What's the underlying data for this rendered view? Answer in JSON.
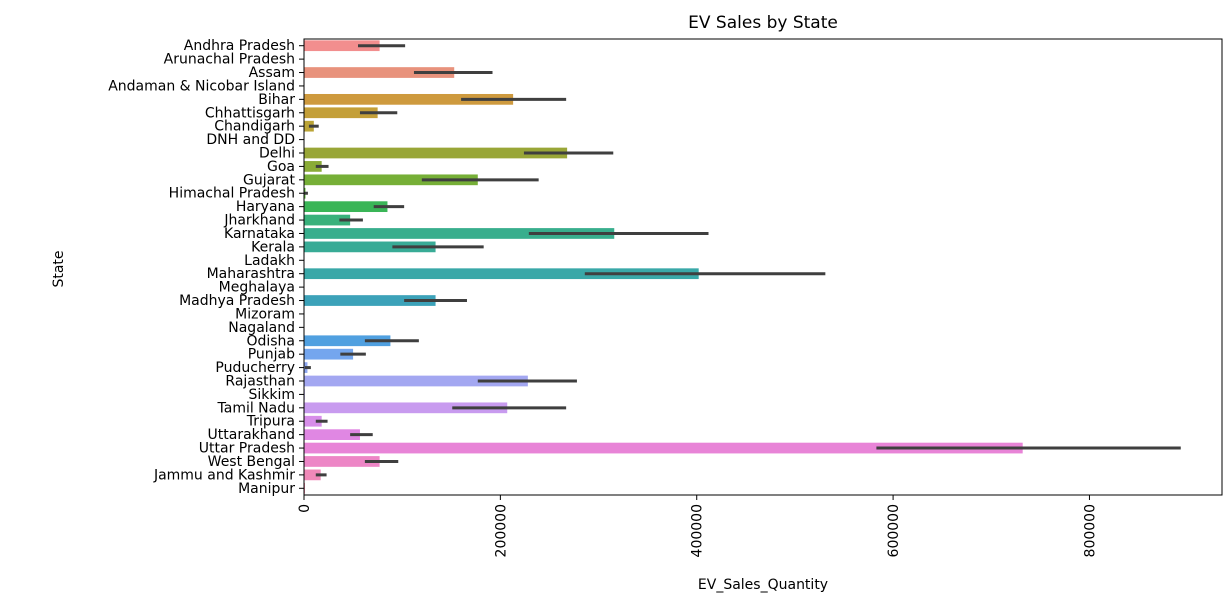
{
  "chart_data": {
    "type": "bar",
    "orientation": "horizontal",
    "title": "EV Sales by State",
    "xlabel": "EV_Sales_Quantity",
    "ylabel": "State",
    "xlim": [
      0,
      935000
    ],
    "xticks": [
      0,
      200000,
      400000,
      600000,
      800000
    ],
    "xtick_labels": [
      "0",
      "200000",
      "400000",
      "600000",
      "800000"
    ],
    "grid": false,
    "legend": "none",
    "categories": [
      "Andhra Pradesh",
      "Arunachal Pradesh",
      "Assam",
      "Andaman & Nicobar Island",
      "Bihar",
      "Chhattisgarh",
      "Chandigarh",
      "DNH and DD",
      "Delhi",
      "Goa",
      "Gujarat",
      "Himachal Pradesh",
      "Haryana",
      "Jharkhand",
      "Karnataka",
      "Kerala",
      "Ladakh",
      "Maharashtra",
      "Meghalaya",
      "Madhya Pradesh",
      "Mizoram",
      "Nagaland",
      "Odisha",
      "Punjab",
      "Puducherry",
      "Rajasthan",
      "Sikkim",
      "Tamil Nadu",
      "Tripura",
      "Uttarakhand",
      "Uttar Pradesh",
      "West Bengal",
      "Jammu and Kashmir",
      "Manipur"
    ],
    "values": [
      77000,
      500,
      153000,
      300,
      213000,
      75000,
      10000,
      500,
      268000,
      18000,
      177000,
      1500,
      85000,
      47000,
      316000,
      134000,
      200,
      402000,
      500,
      134000,
      300,
      300,
      88000,
      50000,
      3500,
      228000,
      800,
      207000,
      18000,
      57000,
      732000,
      77000,
      17000,
      1000
    ],
    "error_low": [
      55000,
      0,
      112000,
      0,
      160000,
      57000,
      5000,
      0,
      224000,
      12000,
      120000,
      0,
      71000,
      36000,
      229000,
      90000,
      0,
      286000,
      0,
      102000,
      0,
      0,
      62000,
      37000,
      1000,
      177000,
      0,
      151000,
      12000,
      47000,
      583000,
      62000,
      12000,
      0
    ],
    "error_high": [
      103000,
      0,
      192000,
      0,
      267000,
      95000,
      15000,
      0,
      315000,
      25000,
      239000,
      4000,
      102000,
      60000,
      412000,
      183000,
      0,
      531000,
      0,
      166000,
      0,
      0,
      117000,
      63000,
      7000,
      278000,
      0,
      267000,
      24000,
      70000,
      893000,
      96000,
      23000,
      0
    ],
    "colors": [
      "#f28e8e",
      "#f18f81",
      "#e8927c",
      "#d9975e",
      "#ce9a3e",
      "#c49f38",
      "#bba436",
      "#a8a636",
      "#99a637",
      "#8aab37",
      "#76af37",
      "#5db43a",
      "#3ab557",
      "#39b17b",
      "#38ae8d",
      "#38ab96",
      "#38aa9f",
      "#39a8a8",
      "#3ba5b1",
      "#3ca2b9",
      "#3d9fc2",
      "#3d9bcb",
      "#50a0e0",
      "#74a6ee",
      "#8da6f0",
      "#a3a7f1",
      "#b4a5f1",
      "#c89bef",
      "#d78ee9",
      "#e087e3",
      "#e884d7",
      "#ed86c6",
      "#f089b8",
      "#f18ca8"
    ]
  }
}
